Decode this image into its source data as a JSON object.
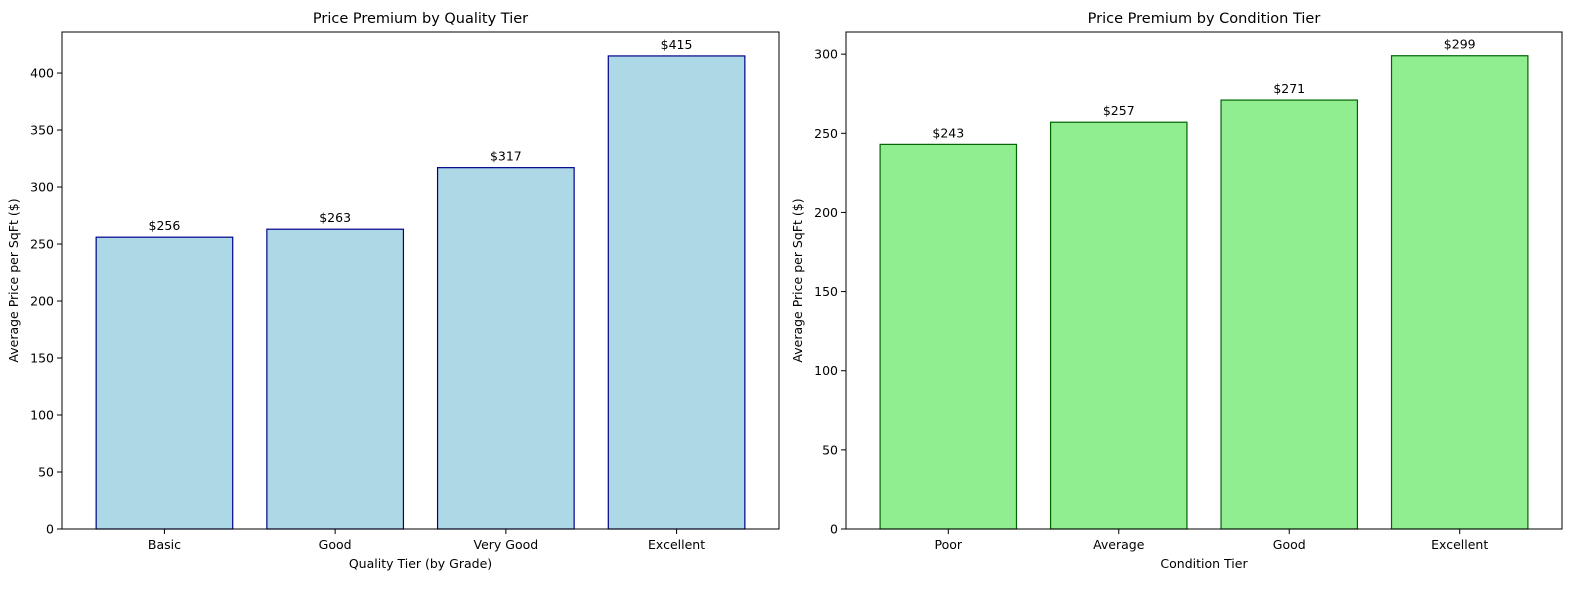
{
  "chart_data": [
    {
      "type": "bar",
      "title": "Price Premium by Quality Tier",
      "xlabel": "Quality Tier (by Grade)",
      "ylabel": "Average Price per SqFt ($)",
      "categories": [
        "Basic",
        "Good",
        "Very Good",
        "Excellent"
      ],
      "values": [
        256,
        263,
        317,
        415
      ],
      "data_labels": [
        "$256",
        "$263",
        "$317",
        "$415"
      ],
      "ylim": [
        0,
        436
      ],
      "yticks": [
        0,
        50,
        100,
        150,
        200,
        250,
        300,
        350,
        400
      ],
      "bar_color": "#add8e6",
      "edge_color": "#00008b",
      "grid": false,
      "legend": "none"
    },
    {
      "type": "bar",
      "title": "Price Premium by Condition Tier",
      "xlabel": "Condition Tier",
      "ylabel": "Average Price per SqFt ($)",
      "categories": [
        "Poor",
        "Average",
        "Good",
        "Excellent"
      ],
      "values": [
        243,
        257,
        271,
        299
      ],
      "data_labels": [
        "$243",
        "$257",
        "$271",
        "$299"
      ],
      "ylim": [
        0,
        314
      ],
      "yticks": [
        0,
        50,
        100,
        150,
        200,
        250,
        300
      ],
      "bar_color": "#90ee90",
      "edge_color": "#006400",
      "grid": false,
      "legend": "none"
    }
  ]
}
